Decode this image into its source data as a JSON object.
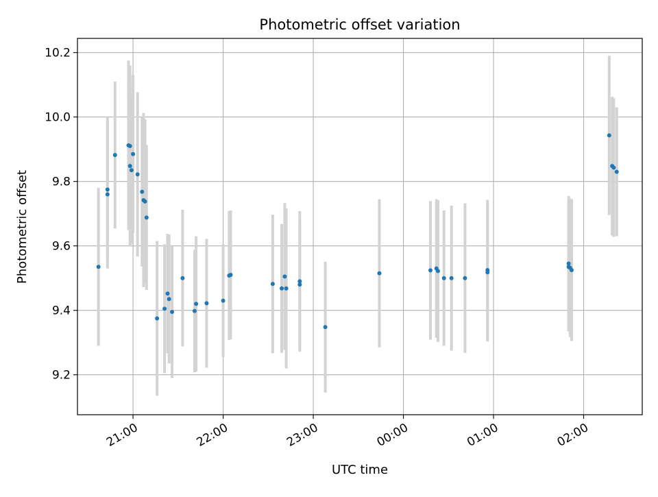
{
  "chart_data": {
    "type": "scatter",
    "title": "Photometric offset variation",
    "xlabel": "UTC time",
    "ylabel": "Photometric offset",
    "x_ticks": [
      "21:00",
      "22:00",
      "23:00",
      "00:00",
      "01:00",
      "02:00"
    ],
    "y_ticks": [
      "9.2",
      "9.4",
      "9.6",
      "9.8",
      "10.0",
      "10.2"
    ],
    "xlim": [
      "20:23",
      "02:39"
    ],
    "ylim": [
      9.076,
      10.244
    ],
    "grid": true,
    "error_bars": true,
    "colors": {
      "points": "#1f77b4",
      "error_bars": "#d3d3d3",
      "grid": "#b0b0b0"
    },
    "points": [
      {
        "t": "20:37",
        "y": 9.535,
        "err": 0.245
      },
      {
        "t": "20:43",
        "y": 9.775,
        "err": 0.225
      },
      {
        "t": "20:43",
        "y": 9.76,
        "err": 0.23
      },
      {
        "t": "20:48",
        "y": 9.882,
        "err": 0.228
      },
      {
        "t": "20:57",
        "y": 9.912,
        "err": 0.263
      },
      {
        "t": "20:58",
        "y": 9.91,
        "err": 0.25
      },
      {
        "t": "20:58",
        "y": 9.848,
        "err": 0.25
      },
      {
        "t": "20:59",
        "y": 9.835,
        "err": 0.23
      },
      {
        "t": "21:00",
        "y": 9.885,
        "err": 0.245
      },
      {
        "t": "21:03",
        "y": 9.822,
        "err": 0.255
      },
      {
        "t": "21:06",
        "y": 9.768,
        "err": 0.232
      },
      {
        "t": "21:07",
        "y": 9.742,
        "err": 0.27
      },
      {
        "t": "21:08",
        "y": 9.738,
        "err": 0.255
      },
      {
        "t": "21:09",
        "y": 9.688,
        "err": 0.225
      },
      {
        "t": "21:16",
        "y": 9.375,
        "err": 0.24
      },
      {
        "t": "21:21",
        "y": 9.405,
        "err": 0.2
      },
      {
        "t": "21:23",
        "y": 9.452,
        "err": 0.185
      },
      {
        "t": "21:24",
        "y": 9.435,
        "err": 0.2
      },
      {
        "t": "21:26",
        "y": 9.395,
        "err": 0.205
      },
      {
        "t": "21:33",
        "y": 9.5,
        "err": 0.212
      },
      {
        "t": "21:41",
        "y": 9.398,
        "err": 0.19
      },
      {
        "t": "21:42",
        "y": 9.42,
        "err": 0.21
      },
      {
        "t": "21:49",
        "y": 9.422,
        "err": 0.2
      },
      {
        "t": "22:00",
        "y": 9.43,
        "err": 0.175
      },
      {
        "t": "22:04",
        "y": 9.508,
        "err": 0.2
      },
      {
        "t": "22:05",
        "y": 9.51,
        "err": 0.2
      },
      {
        "t": "22:33",
        "y": 9.482,
        "err": 0.215
      },
      {
        "t": "22:39",
        "y": 9.468,
        "err": 0.2
      },
      {
        "t": "22:41",
        "y": 9.505,
        "err": 0.228
      },
      {
        "t": "22:42",
        "y": 9.468,
        "err": 0.248
      },
      {
        "t": "22:51",
        "y": 9.49,
        "err": 0.218
      },
      {
        "t": "22:51",
        "y": 9.48,
        "err": 0.2
      },
      {
        "t": "23:08",
        "y": 9.348,
        "err": 0.203
      },
      {
        "t": "23:44",
        "y": 9.515,
        "err": 0.23
      },
      {
        "t": "00:18",
        "y": 9.524,
        "err": 0.215
      },
      {
        "t": "00:22",
        "y": 9.53,
        "err": 0.215
      },
      {
        "t": "00:23",
        "y": 9.522,
        "err": 0.22
      },
      {
        "t": "00:27",
        "y": 9.5,
        "err": 0.21
      },
      {
        "t": "00:32",
        "y": 9.5,
        "err": 0.225
      },
      {
        "t": "00:41",
        "y": 9.5,
        "err": 0.232
      },
      {
        "t": "00:56",
        "y": 9.525,
        "err": 0.218
      },
      {
        "t": "00:56",
        "y": 9.518,
        "err": 0.215
      },
      {
        "t": "01:50",
        "y": 9.545,
        "err": 0.21
      },
      {
        "t": "01:50",
        "y": 9.535,
        "err": 0.2
      },
      {
        "t": "01:51",
        "y": 9.532,
        "err": 0.215
      },
      {
        "t": "01:52",
        "y": 9.525,
        "err": 0.22
      },
      {
        "t": "02:17",
        "y": 9.943,
        "err": 0.247
      },
      {
        "t": "02:19",
        "y": 9.848,
        "err": 0.215
      },
      {
        "t": "02:20",
        "y": 9.843,
        "err": 0.215
      },
      {
        "t": "02:22",
        "y": 9.83,
        "err": 0.2
      }
    ]
  }
}
